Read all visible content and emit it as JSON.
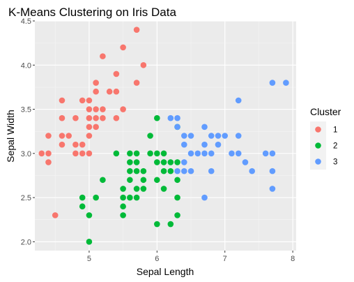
{
  "chart_data": {
    "type": "scatter",
    "title": "K-Means Clustering on Iris Data",
    "xlabel": "Sepal Length",
    "ylabel": "Sepal Width",
    "xlim": [
      4.2,
      8.05
    ],
    "ylim": [
      1.9,
      4.5
    ],
    "xticks": [
      5,
      6,
      7,
      8
    ],
    "yticks": [
      2.0,
      2.5,
      3.0,
      3.5,
      4.0,
      4.5
    ],
    "ytick_labels": [
      "2.0",
      "2.5",
      "3.0",
      "3.5",
      "4.0",
      "4.5"
    ],
    "grid": true,
    "legend": {
      "title": "Cluster",
      "position": "right"
    },
    "series": [
      {
        "name": "1",
        "color": "#F8766D",
        "points": [
          [
            4.3,
            3.0
          ],
          [
            4.4,
            2.9
          ],
          [
            4.4,
            3.0
          ],
          [
            4.4,
            3.2
          ],
          [
            4.5,
            2.3
          ],
          [
            4.6,
            3.1
          ],
          [
            4.6,
            3.2
          ],
          [
            4.6,
            3.4
          ],
          [
            4.6,
            3.6
          ],
          [
            4.7,
            3.2
          ],
          [
            4.8,
            3.0
          ],
          [
            4.8,
            3.1
          ],
          [
            4.8,
            3.4
          ],
          [
            4.9,
            3.0
          ],
          [
            4.9,
            3.1
          ],
          [
            4.9,
            3.6
          ],
          [
            5.0,
            3.0
          ],
          [
            5.0,
            3.2
          ],
          [
            5.0,
            3.3
          ],
          [
            5.0,
            3.4
          ],
          [
            5.0,
            3.5
          ],
          [
            5.0,
            3.6
          ],
          [
            5.1,
            3.3
          ],
          [
            5.1,
            3.4
          ],
          [
            5.1,
            3.5
          ],
          [
            5.1,
            3.7
          ],
          [
            5.1,
            3.8
          ],
          [
            5.2,
            3.4
          ],
          [
            5.2,
            3.5
          ],
          [
            5.2,
            4.1
          ],
          [
            5.3,
            3.7
          ],
          [
            5.4,
            3.4
          ],
          [
            5.4,
            3.7
          ],
          [
            5.4,
            3.9
          ],
          [
            5.5,
            3.5
          ],
          [
            5.5,
            4.2
          ],
          [
            5.7,
            3.8
          ],
          [
            5.7,
            4.4
          ],
          [
            5.8,
            4.0
          ]
        ]
      },
      {
        "name": "2",
        "color": "#00BA38",
        "points": [
          [
            4.9,
            2.4
          ],
          [
            4.9,
            2.5
          ],
          [
            5.0,
            2.0
          ],
          [
            5.0,
            2.3
          ],
          [
            5.1,
            2.5
          ],
          [
            5.2,
            2.7
          ],
          [
            5.4,
            3.0
          ],
          [
            5.5,
            2.3
          ],
          [
            5.5,
            2.4
          ],
          [
            5.5,
            2.5
          ],
          [
            5.5,
            2.6
          ],
          [
            5.6,
            2.5
          ],
          [
            5.6,
            2.7
          ],
          [
            5.6,
            2.8
          ],
          [
            5.6,
            2.9
          ],
          [
            5.6,
            3.0
          ],
          [
            5.7,
            2.5
          ],
          [
            5.7,
            2.6
          ],
          [
            5.7,
            2.8
          ],
          [
            5.7,
            2.9
          ],
          [
            5.7,
            3.0
          ],
          [
            5.8,
            2.6
          ],
          [
            5.8,
            2.7
          ],
          [
            5.8,
            2.8
          ],
          [
            5.9,
            3.0
          ],
          [
            5.9,
            3.2
          ],
          [
            6.0,
            2.2
          ],
          [
            6.0,
            2.7
          ],
          [
            6.0,
            2.9
          ],
          [
            6.0,
            3.0
          ],
          [
            6.0,
            3.4
          ],
          [
            6.1,
            2.6
          ],
          [
            6.1,
            2.8
          ],
          [
            6.1,
            2.9
          ],
          [
            6.1,
            3.0
          ],
          [
            6.2,
            2.2
          ],
          [
            6.2,
            2.8
          ],
          [
            6.2,
            2.9
          ],
          [
            6.3,
            2.3
          ],
          [
            6.3,
            2.5
          ],
          [
            6.3,
            2.7
          ],
          [
            6.3,
            2.9
          ],
          [
            6.3,
            3.3
          ]
        ]
      },
      {
        "name": "3",
        "color": "#619CFF",
        "points": [
          [
            6.2,
            3.4
          ],
          [
            6.3,
            2.8
          ],
          [
            6.3,
            3.3
          ],
          [
            6.3,
            3.4
          ],
          [
            6.4,
            2.8
          ],
          [
            6.4,
            2.9
          ],
          [
            6.4,
            3.1
          ],
          [
            6.4,
            3.2
          ],
          [
            6.5,
            2.8
          ],
          [
            6.5,
            3.0
          ],
          [
            6.5,
            3.2
          ],
          [
            6.6,
            3.0
          ],
          [
            6.7,
            2.5
          ],
          [
            6.7,
            3.0
          ],
          [
            6.7,
            3.1
          ],
          [
            6.7,
            3.3
          ],
          [
            6.8,
            2.8
          ],
          [
            6.8,
            3.0
          ],
          [
            6.8,
            3.2
          ],
          [
            6.9,
            3.1
          ],
          [
            6.9,
            3.2
          ],
          [
            7.0,
            3.2
          ],
          [
            7.1,
            3.0
          ],
          [
            7.2,
            3.0
          ],
          [
            7.2,
            3.2
          ],
          [
            7.2,
            3.6
          ],
          [
            7.3,
            2.9
          ],
          [
            7.4,
            2.8
          ],
          [
            7.6,
            3.0
          ],
          [
            7.7,
            2.6
          ],
          [
            7.7,
            2.8
          ],
          [
            7.7,
            3.0
          ],
          [
            7.7,
            3.8
          ],
          [
            7.9,
            3.8
          ]
        ]
      }
    ]
  }
}
